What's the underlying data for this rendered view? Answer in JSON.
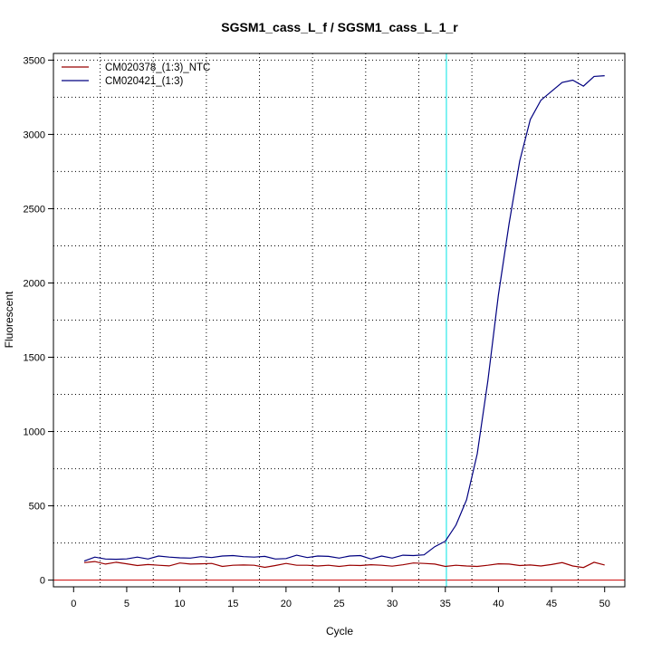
{
  "chart_data": {
    "type": "line",
    "title": "SGSM1_cass_L_f / SGSM1_cass_L_1_r",
    "xlabel": "Cycle",
    "ylabel": "Fluorescent",
    "xlim": [
      -1.9,
      51.9
    ],
    "ylim": [
      -45,
      3545
    ],
    "x_ticks": [
      0,
      5,
      10,
      15,
      20,
      25,
      30,
      35,
      40,
      45,
      50
    ],
    "y_ticks": [
      0,
      500,
      1000,
      1500,
      2000,
      2500,
      3000,
      3500
    ],
    "grid": true,
    "legend_position": "top-left",
    "threshold": {
      "y": 0,
      "color": "#cc0000"
    },
    "cycle_marker": {
      "x": 35.1,
      "color": "#00e5e5"
    },
    "series": [
      {
        "name": "CM020378_(1:3)_NTC",
        "color": "#990000",
        "x": [
          1,
          2,
          3,
          4,
          5,
          6,
          7,
          8,
          9,
          10,
          11,
          12,
          13,
          14,
          15,
          16,
          17,
          18,
          19,
          20,
          21,
          22,
          23,
          24,
          25,
          26,
          27,
          28,
          29,
          30,
          31,
          32,
          33,
          34,
          35,
          36,
          37,
          38,
          39,
          40,
          41,
          42,
          43,
          44,
          45,
          46,
          47,
          48,
          49,
          50
        ],
        "values": [
          118,
          125,
          108,
          120,
          110,
          98,
          105,
          100,
          96,
          115,
          108,
          110,
          112,
          92,
          100,
          102,
          100,
          86,
          98,
          112,
          100,
          100,
          95,
          100,
          92,
          100,
          98,
          104,
          100,
          94,
          103,
          115,
          112,
          108,
          92,
          100,
          95,
          92,
          100,
          110,
          108,
          98,
          102,
          95,
          105,
          118,
          95,
          85,
          120,
          102
        ]
      },
      {
        "name": "CM020421_(1:3)",
        "color": "#000080",
        "x": [
          1,
          2,
          3,
          4,
          5,
          6,
          7,
          8,
          9,
          10,
          11,
          12,
          13,
          14,
          15,
          16,
          17,
          18,
          19,
          20,
          21,
          22,
          23,
          24,
          25,
          26,
          27,
          28,
          29,
          30,
          31,
          32,
          33,
          34,
          35,
          36,
          37,
          38,
          39,
          40,
          41,
          42,
          43,
          44,
          45,
          46,
          47,
          48,
          49,
          50
        ],
        "values": [
          128,
          155,
          142,
          140,
          143,
          155,
          142,
          162,
          155,
          150,
          148,
          158,
          152,
          162,
          165,
          158,
          155,
          160,
          142,
          145,
          168,
          152,
          162,
          160,
          148,
          162,
          165,
          142,
          162,
          148,
          168,
          165,
          170,
          225,
          262,
          370,
          540,
          850,
          1340,
          1920,
          2400,
          2820,
          3100,
          3230,
          3290,
          3350,
          3365,
          3325,
          3390,
          3395
        ]
      }
    ]
  }
}
